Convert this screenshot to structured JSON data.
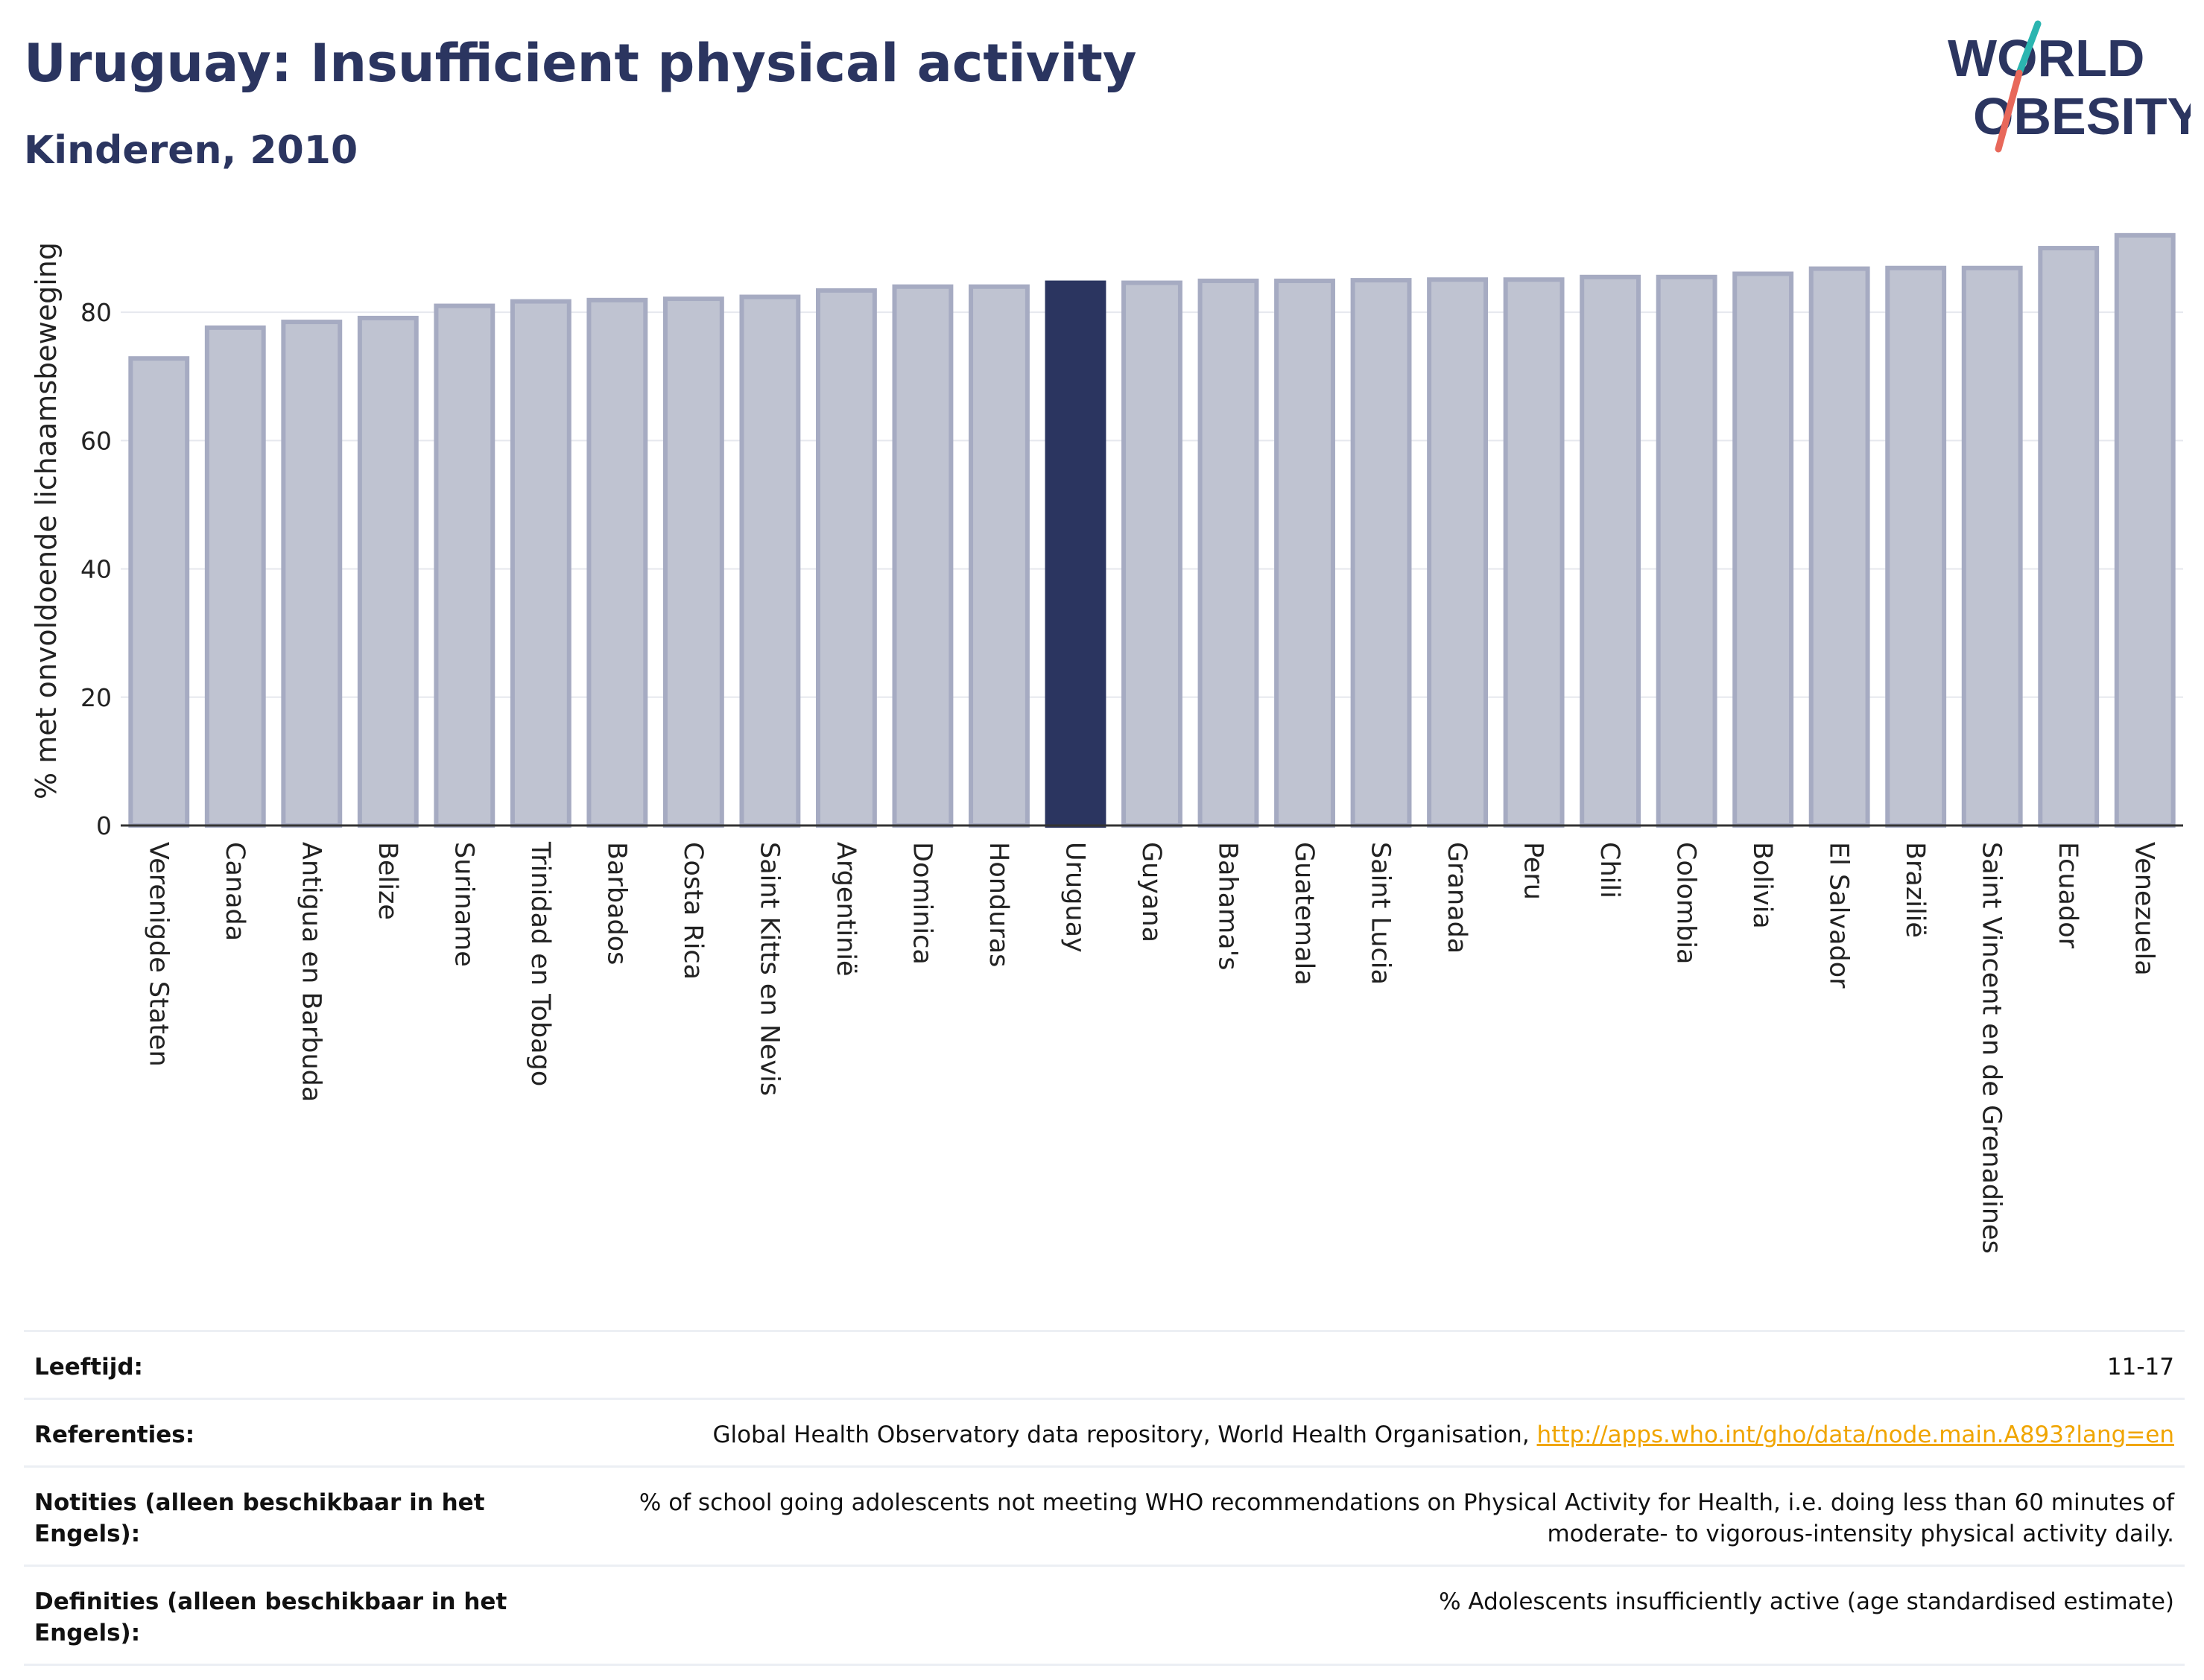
{
  "header": {
    "title": "Uruguay: Insufficient physical activity",
    "subtitle": "Kinderen, 2010"
  },
  "logo": {
    "line1": "WORLD",
    "line2": "OBESITY"
  },
  "colors": {
    "highlight": "#2b3560",
    "bar_fill": "#bfc3d1",
    "bar_stroke": "#a6abc2",
    "text": "#2b3560",
    "link": "#f0a500"
  },
  "chart_data": {
    "type": "bar",
    "ylabel": "% met onvoldoende lichaamsbeweging",
    "xlabel": "",
    "ylim": [
      0,
      95
    ],
    "yticks": [
      0,
      20,
      40,
      60,
      80
    ],
    "grid": true,
    "highlight": "Uruguay",
    "categories": [
      "Verenigde Staten",
      "Canada",
      "Antigua en Barbuda",
      "Belize",
      "Suriname",
      "Trinidad en Tobago",
      "Barbados",
      "Costa Rica",
      "Saint Kitts en Nevis",
      "Argentinië",
      "Dominica",
      "Honduras",
      "Uruguay",
      "Guyana",
      "Bahama's",
      "Guatemala",
      "Saint Lucia",
      "Granada",
      "Peru",
      "Chili",
      "Colombia",
      "Bolivia",
      "El Salvador",
      "Brazilië",
      "Saint Vincent en de Grenadines",
      "Ecuador",
      "Venezuela"
    ],
    "values": [
      72.8,
      77.6,
      78.5,
      79.1,
      81.0,
      81.7,
      81.9,
      82.1,
      82.4,
      83.4,
      84.0,
      84.0,
      84.6,
      84.6,
      84.9,
      84.9,
      85.0,
      85.1,
      85.1,
      85.5,
      85.5,
      86.0,
      86.8,
      86.9,
      86.9,
      90.0,
      92.0
    ]
  },
  "meta": {
    "rows": [
      {
        "key": "Leeftijd:",
        "value": "11-17"
      },
      {
        "key": "Referenties:",
        "value": "Global Health Observatory data repository, World Health Organisation,",
        "link": "http://apps.who.int/gho/data/node.main.A893?lang=en"
      },
      {
        "key": "Notities (alleen beschikbaar in het Engels):",
        "value": "% of school going adolescents not meeting WHO recommendations on Physical Activity for Health, i.e. doing less than 60 minutes of moderate- to vigorous-intensity physical activity daily."
      },
      {
        "key": "Definities (alleen beschikbaar in het Engels):",
        "value": "% Adolescents insufficiently active (age standardised estimate)"
      }
    ]
  }
}
